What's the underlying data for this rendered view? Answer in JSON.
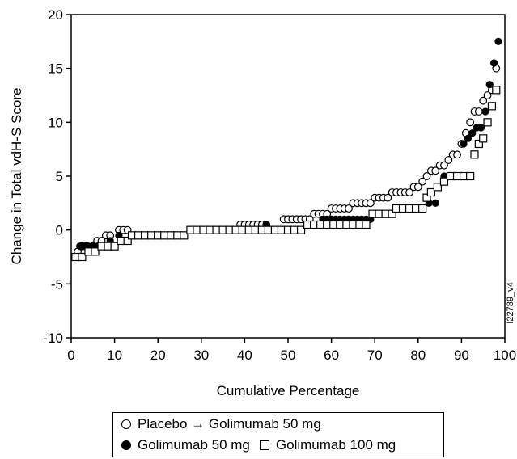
{
  "chart_data": {
    "type": "scatter",
    "title": "",
    "xlabel": "Cumulative Percentage",
    "ylabel": "Change in Total vdH-S Score",
    "xlim": [
      0,
      100
    ],
    "ylim": [
      -10,
      20
    ],
    "xticks": [
      0,
      10,
      20,
      30,
      40,
      50,
      60,
      70,
      80,
      90,
      100
    ],
    "yticks": [
      -10,
      -5,
      0,
      5,
      10,
      15,
      20
    ],
    "xtick_labels": [
      "0",
      "10",
      "20",
      "30",
      "40",
      "50",
      "60",
      "70",
      "80",
      "90",
      "100"
    ],
    "ytick_labels": [
      "-10",
      "-5",
      "0",
      "5",
      "10",
      "15",
      "20"
    ],
    "grid": false,
    "legend_placement": "below",
    "figure_code": "I22789_v4",
    "series": [
      {
        "name": "Placebo → Golimumab 50 mg",
        "marker": "open-circle",
        "points": [
          [
            1.5,
            -2.0
          ],
          [
            2.5,
            -1.5
          ],
          [
            3.5,
            -1.5
          ],
          [
            5,
            -1.5
          ],
          [
            6,
            -1.0
          ],
          [
            7,
            -1.0
          ],
          [
            8,
            -0.5
          ],
          [
            9,
            -0.5
          ],
          [
            11,
            0.0
          ],
          [
            12,
            0.0
          ],
          [
            13,
            0.0
          ],
          [
            39,
            0.5
          ],
          [
            40,
            0.5
          ],
          [
            41,
            0.5
          ],
          [
            42,
            0.5
          ],
          [
            43,
            0.5
          ],
          [
            44,
            0.5
          ],
          [
            45,
            0.5
          ],
          [
            49,
            1.0
          ],
          [
            50,
            1.0
          ],
          [
            51,
            1.0
          ],
          [
            52,
            1.0
          ],
          [
            53,
            1.0
          ],
          [
            54,
            1.0
          ],
          [
            55,
            1.0
          ],
          [
            56,
            1.5
          ],
          [
            57,
            1.5
          ],
          [
            58,
            1.5
          ],
          [
            59,
            1.5
          ],
          [
            60,
            2.0
          ],
          [
            61,
            2.0
          ],
          [
            62,
            2.0
          ],
          [
            63,
            2.0
          ],
          [
            64,
            2.0
          ],
          [
            65,
            2.5
          ],
          [
            66,
            2.5
          ],
          [
            67,
            2.5
          ],
          [
            68,
            2.5
          ],
          [
            69,
            2.5
          ],
          [
            70,
            3.0
          ],
          [
            71,
            3.0
          ],
          [
            72,
            3.0
          ],
          [
            73,
            3.0
          ],
          [
            74,
            3.5
          ],
          [
            75,
            3.5
          ],
          [
            76,
            3.5
          ],
          [
            77,
            3.5
          ],
          [
            78,
            3.5
          ],
          [
            79,
            4.0
          ],
          [
            80,
            4.0
          ],
          [
            81,
            4.5
          ],
          [
            82,
            5.0
          ],
          [
            83,
            5.5
          ],
          [
            84,
            5.5
          ],
          [
            85,
            6.0
          ],
          [
            86,
            6.0
          ],
          [
            87,
            6.5
          ],
          [
            88,
            7.0
          ],
          [
            89,
            7.0
          ],
          [
            90,
            8.0
          ],
          [
            91,
            9.0
          ],
          [
            92,
            10.0
          ],
          [
            93,
            11.0
          ],
          [
            94,
            11.0
          ],
          [
            95,
            12.0
          ],
          [
            96,
            12.5
          ],
          [
            97,
            13.0
          ],
          [
            98,
            15.0
          ]
        ]
      },
      {
        "name": "Golimumab 50 mg",
        "marker": "filled-circle",
        "points": [
          [
            2,
            -1.5
          ],
          [
            3,
            -1.5
          ],
          [
            4,
            -1.5
          ],
          [
            5,
            -1.5
          ],
          [
            6,
            -1.5
          ],
          [
            9,
            -1.0
          ],
          [
            11,
            -0.5
          ],
          [
            45,
            0.5
          ],
          [
            58,
            1.0
          ],
          [
            59,
            1.0
          ],
          [
            60,
            1.0
          ],
          [
            61,
            1.0
          ],
          [
            62,
            1.0
          ],
          [
            63,
            1.0
          ],
          [
            64,
            1.0
          ],
          [
            65,
            1.0
          ],
          [
            66,
            1.0
          ],
          [
            67,
            1.0
          ],
          [
            68,
            1.0
          ],
          [
            69,
            1.0
          ],
          [
            82.5,
            2.5
          ],
          [
            84,
            2.5
          ],
          [
            86,
            5.0
          ],
          [
            87,
            5.0
          ],
          [
            88,
            5.0
          ],
          [
            90.5,
            8.0
          ],
          [
            91.5,
            8.5
          ],
          [
            92.5,
            9.0
          ],
          [
            93.5,
            9.5
          ],
          [
            94.5,
            9.5
          ],
          [
            95.5,
            11.0
          ],
          [
            96.5,
            13.5
          ],
          [
            97.5,
            15.5
          ],
          [
            98.5,
            17.5
          ]
        ]
      },
      {
        "name": "Golimumab 100 mg",
        "marker": "open-square",
        "points": [
          [
            1,
            -2.5
          ],
          [
            2.5,
            -2.5
          ],
          [
            4,
            -2.0
          ],
          [
            5.5,
            -2.0
          ],
          [
            7,
            -1.5
          ],
          [
            8.5,
            -1.5
          ],
          [
            10,
            -1.5
          ],
          [
            11.5,
            -1.0
          ],
          [
            13,
            -1.0
          ],
          [
            14,
            -0.5
          ],
          [
            15.5,
            -0.5
          ],
          [
            17,
            -0.5
          ],
          [
            18.5,
            -0.5
          ],
          [
            20,
            -0.5
          ],
          [
            21.5,
            -0.5
          ],
          [
            23,
            -0.5
          ],
          [
            24.5,
            -0.5
          ],
          [
            26,
            -0.5
          ],
          [
            27.5,
            0.0
          ],
          [
            29,
            0.0
          ],
          [
            30.5,
            0.0
          ],
          [
            32,
            0.0
          ],
          [
            33.5,
            0.0
          ],
          [
            35,
            0.0
          ],
          [
            36.5,
            0.0
          ],
          [
            38,
            0.0
          ],
          [
            39.5,
            0.0
          ],
          [
            41,
            0.0
          ],
          [
            42.5,
            0.0
          ],
          [
            44,
            0.0
          ],
          [
            45.5,
            0.0
          ],
          [
            47,
            0.0
          ],
          [
            48.5,
            0.0
          ],
          [
            50,
            0.0
          ],
          [
            51.5,
            0.0
          ],
          [
            53,
            0.0
          ],
          [
            54.5,
            0.5
          ],
          [
            56,
            0.5
          ],
          [
            57.5,
            0.5
          ],
          [
            59,
            0.5
          ],
          [
            60.5,
            0.5
          ],
          [
            62,
            0.5
          ],
          [
            63.5,
            0.5
          ],
          [
            65,
            0.5
          ],
          [
            66.5,
            0.5
          ],
          [
            68,
            0.5
          ],
          [
            69.5,
            1.5
          ],
          [
            71,
            1.5
          ],
          [
            72.5,
            1.5
          ],
          [
            74,
            1.5
          ],
          [
            75,
            2.0
          ],
          [
            76.5,
            2.0
          ],
          [
            78,
            2.0
          ],
          [
            79.5,
            2.0
          ],
          [
            81,
            2.0
          ],
          [
            82,
            3.0
          ],
          [
            83,
            3.5
          ],
          [
            84.5,
            4.0
          ],
          [
            86,
            4.5
          ],
          [
            87.5,
            5.0
          ],
          [
            89,
            5.0
          ],
          [
            90.5,
            5.0
          ],
          [
            92,
            5.0
          ],
          [
            93,
            7.0
          ],
          [
            94,
            8.0
          ],
          [
            95,
            8.5
          ],
          [
            96,
            10.0
          ],
          [
            97,
            11.5
          ],
          [
            98,
            13.0
          ]
        ]
      }
    ]
  },
  "legend": {
    "row1": "Placebo → Golimumab 50 mg",
    "row2a": "Golimumab 50 mg",
    "row2b": "Golimumab 100 mg"
  }
}
